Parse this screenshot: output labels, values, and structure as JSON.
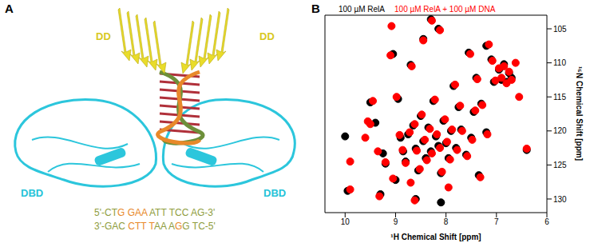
{
  "figure": {
    "panel_labels": [
      "A",
      "B"
    ],
    "panel_a": {
      "domain_labels": [
        {
          "text": "DD",
          "color": "#d8c81e"
        },
        {
          "text": "DD",
          "color": "#d8c81e"
        },
        {
          "text": "DBD",
          "color": "#27c3d8"
        },
        {
          "text": "DBD",
          "color": "#27c3d8"
        }
      ],
      "dna": {
        "top": [
          {
            "text": "5'-CT",
            "color": "#8f9d3e"
          },
          {
            "text": "G GAA",
            "color": "#e8892a"
          },
          {
            "text": " ATT TCC AG-3'",
            "color": "#8f9d3e"
          }
        ],
        "bottom": [
          {
            "text": "3'-GAC ",
            "color": "#8f9d3e"
          },
          {
            "text": "CTT T",
            "color": "#e8892a"
          },
          {
            "text": "AA A",
            "color": "#8f9d3e"
          },
          {
            "text": "G",
            "color": "#e8892a"
          },
          {
            "text": "G TC-5'",
            "color": "#8f9d3e"
          }
        ]
      }
    }
  },
  "chart_data": {
    "type": "scatter",
    "x_label": "¹H Chemical Shift [ppm]",
    "y_label": "¹⁵N Chemical Shift [ppm]",
    "xlim": [
      10.4,
      6.0
    ],
    "xticks": [
      10,
      9,
      8,
      7,
      6
    ],
    "ylim": [
      132,
      103
    ],
    "yticks": [
      105,
      110,
      115,
      120,
      125,
      130
    ],
    "grid": false,
    "legend": "top left",
    "series": [
      {
        "name": "100 µM RelA",
        "color": "#000000",
        "marker": "circle",
        "values": [
          [
            10.0,
            120.8
          ],
          [
            9.95,
            128.8
          ],
          [
            9.4,
            118.8
          ],
          [
            9.25,
            123.3
          ],
          [
            9.2,
            124.8
          ],
          [
            9.0,
            127.2
          ],
          [
            8.95,
            115.3
          ],
          [
            8.9,
            121.0
          ],
          [
            8.85,
            123.0
          ],
          [
            8.8,
            124.5
          ],
          [
            8.75,
            120.5
          ],
          [
            8.7,
            110.3
          ],
          [
            8.65,
            119.2
          ],
          [
            8.6,
            122.6
          ],
          [
            8.55,
            125.8
          ],
          [
            8.5,
            117.8
          ],
          [
            8.45,
            121.5
          ],
          [
            8.4,
            124.0
          ],
          [
            8.35,
            119.5
          ],
          [
            8.3,
            123.0
          ],
          [
            8.25,
            115.6
          ],
          [
            8.2,
            120.8
          ],
          [
            8.15,
            122.2
          ],
          [
            8.1,
            126.2
          ],
          [
            8.05,
            118.5
          ],
          [
            8.0,
            121.8
          ],
          [
            7.95,
            124.0
          ],
          [
            7.9,
            120.0
          ],
          [
            7.85,
            113.4
          ],
          [
            7.8,
            122.5
          ],
          [
            7.75,
            116.5
          ],
          [
            7.7,
            119.8
          ],
          [
            7.6,
            123.5
          ],
          [
            7.55,
            108.5
          ],
          [
            7.5,
            121.0
          ],
          [
            7.45,
            117.2
          ],
          [
            7.4,
            112.2
          ],
          [
            7.35,
            126.5
          ],
          [
            7.3,
            116.0
          ],
          [
            7.2,
            120.2
          ],
          [
            7.1,
            109.5
          ],
          [
            7.05,
            112.8
          ],
          [
            6.95,
            111.0
          ],
          [
            6.9,
            112.5
          ],
          [
            6.85,
            110.2
          ],
          [
            6.8,
            112.8
          ],
          [
            6.75,
            111.5
          ],
          [
            6.7,
            112.2
          ],
          [
            6.4,
            122.8
          ],
          [
            8.3,
            103.6
          ],
          [
            8.15,
            105.0
          ],
          [
            9.05,
            108.7
          ],
          [
            9.3,
            129.3
          ],
          [
            8.6,
            130.0
          ],
          [
            8.1,
            130.5
          ],
          [
            7.2,
            107.5
          ],
          [
            9.5,
            115.8
          ],
          [
            8.45,
            106.5
          ]
        ]
      },
      {
        "name": "100 µM RelA + 100 µM DNA",
        "color": "#ff0000",
        "marker": "circle",
        "values": [
          [
            9.9,
            128.6
          ],
          [
            9.5,
            119.0
          ],
          [
            9.35,
            123.0
          ],
          [
            9.2,
            124.6
          ],
          [
            9.05,
            127.0
          ],
          [
            8.98,
            115.0
          ],
          [
            8.92,
            120.6
          ],
          [
            8.86,
            122.8
          ],
          [
            8.8,
            124.7
          ],
          [
            8.72,
            120.2
          ],
          [
            8.68,
            110.5
          ],
          [
            8.62,
            119.0
          ],
          [
            8.58,
            122.9
          ],
          [
            8.52,
            125.6
          ],
          [
            8.48,
            117.6
          ],
          [
            8.42,
            121.3
          ],
          [
            8.38,
            124.3
          ],
          [
            8.32,
            119.7
          ],
          [
            8.28,
            123.3
          ],
          [
            8.22,
            115.4
          ],
          [
            8.18,
            120.5
          ],
          [
            8.12,
            122.5
          ],
          [
            8.08,
            126.0
          ],
          [
            8.02,
            118.3
          ],
          [
            7.98,
            121.6
          ],
          [
            7.92,
            124.2
          ],
          [
            7.88,
            119.8
          ],
          [
            7.82,
            113.2
          ],
          [
            7.78,
            122.8
          ],
          [
            7.72,
            116.3
          ],
          [
            7.68,
            120.0
          ],
          [
            7.58,
            123.7
          ],
          [
            7.52,
            108.7
          ],
          [
            7.48,
            121.3
          ],
          [
            7.42,
            117.0
          ],
          [
            7.38,
            112.4
          ],
          [
            7.32,
            126.8
          ],
          [
            7.28,
            116.2
          ],
          [
            7.18,
            120.5
          ],
          [
            7.08,
            109.7
          ],
          [
            7.02,
            112.6
          ],
          [
            6.95,
            110.8
          ],
          [
            6.9,
            112.2
          ],
          [
            6.85,
            110.5
          ],
          [
            6.8,
            113.0
          ],
          [
            6.75,
            111.3
          ],
          [
            6.7,
            112.5
          ],
          [
            6.62,
            110.0
          ],
          [
            6.4,
            122.6
          ],
          [
            8.28,
            103.8
          ],
          [
            8.12,
            105.2
          ],
          [
            9.08,
            104.6
          ],
          [
            9.55,
            118.6
          ],
          [
            9.1,
            108.9
          ],
          [
            9.32,
            129.6
          ],
          [
            8.62,
            130.2
          ],
          [
            9.6,
            121.0
          ],
          [
            9.9,
            124.5
          ],
          [
            8.7,
            127.6
          ],
          [
            7.95,
            128.3
          ],
          [
            6.55,
            115.0
          ],
          [
            7.15,
            107.3
          ],
          [
            8.45,
            106.7
          ],
          [
            9.45,
            115.6
          ]
        ]
      }
    ]
  }
}
